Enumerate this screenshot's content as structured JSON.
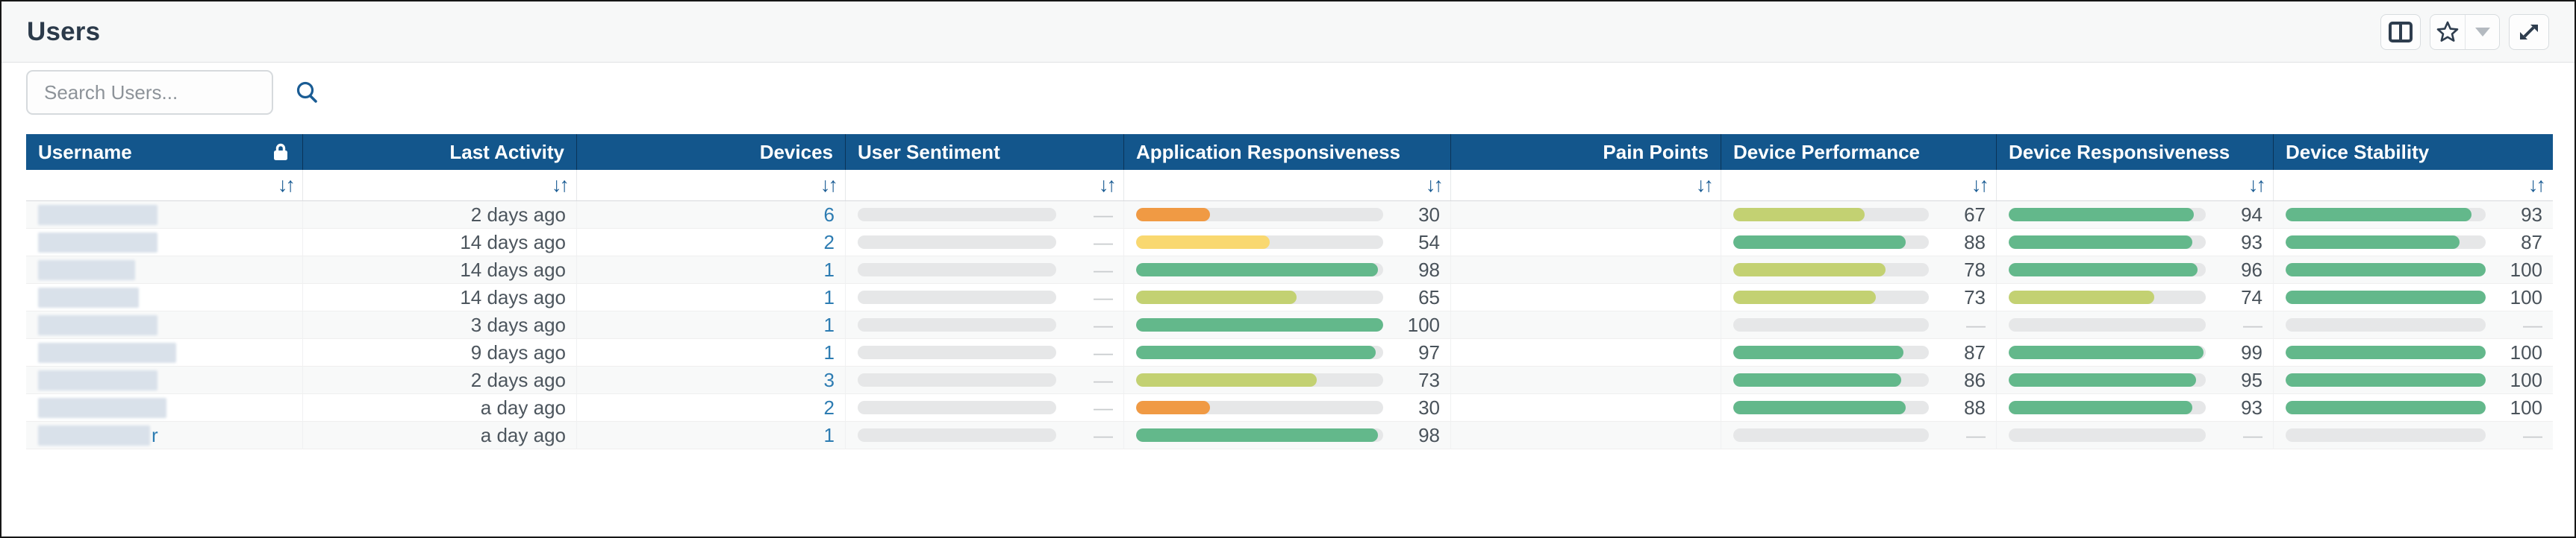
{
  "window": {
    "title": "Users"
  },
  "search": {
    "placeholder": "Search Users..."
  },
  "toolbar": {
    "buttons": [
      {
        "name": "columns",
        "icon": "columns-icon"
      },
      {
        "name": "favorite",
        "icon": "star-icon"
      },
      {
        "name": "favorite-menu",
        "icon": "caret-down-icon"
      },
      {
        "name": "expand",
        "icon": "expand-icon"
      }
    ]
  },
  "colors": {
    "header_bg": "#13568c",
    "accent_blue": "#1a5c94",
    "link": "#2d7cb2",
    "meter_track": "#e6e7e8",
    "meter_green": "#63b88b",
    "meter_lime": "#c3d172",
    "meter_yellow": "#f9d870",
    "meter_orange": "#f09a44"
  },
  "meter_thresholds": {
    "green": 80,
    "lime": 60,
    "yellow": 40
  },
  "table": {
    "empty_value": "—",
    "columns": [
      {
        "key": "username",
        "label": "Username",
        "align": "left",
        "type": "username",
        "locked": true,
        "sortable": true
      },
      {
        "key": "last_activity",
        "label": "Last Activity",
        "align": "right",
        "type": "text",
        "sortable": true
      },
      {
        "key": "devices",
        "label": "Devices",
        "align": "right",
        "type": "link",
        "sortable": true
      },
      {
        "key": "user_sentiment",
        "label": "User Sentiment",
        "align": "left",
        "type": "meter",
        "sortable": true
      },
      {
        "key": "app_responsiveness",
        "label": "Application Responsiveness",
        "align": "left",
        "type": "meter",
        "sortable": true
      },
      {
        "key": "pain_points",
        "label": "Pain Points",
        "align": "right",
        "type": "empty",
        "sortable": true
      },
      {
        "key": "device_performance",
        "label": "Device Performance",
        "align": "left",
        "type": "meter",
        "sortable": true
      },
      {
        "key": "device_responsiveness",
        "label": "Device Responsiveness",
        "align": "left",
        "type": "meter",
        "sortable": true
      },
      {
        "key": "device_stability",
        "label": "Device Stability",
        "align": "left",
        "type": "meter",
        "sortable": true
      }
    ],
    "rows": [
      {
        "username": "",
        "username_redacted": true,
        "redact_width": 160,
        "last_activity": "2 days ago",
        "devices": "6",
        "user_sentiment": null,
        "app_responsiveness": 30,
        "pain_points": null,
        "device_performance": 67,
        "device_responsiveness": 94,
        "device_stability": 93
      },
      {
        "username": "",
        "username_redacted": true,
        "redact_width": 160,
        "last_activity": "14 days ago",
        "devices": "2",
        "user_sentiment": null,
        "app_responsiveness": 54,
        "pain_points": null,
        "device_performance": 88,
        "device_responsiveness": 93,
        "device_stability": 87
      },
      {
        "username": "",
        "username_redacted": true,
        "redact_width": 130,
        "last_activity": "14 days ago",
        "devices": "1",
        "user_sentiment": null,
        "app_responsiveness": 98,
        "pain_points": null,
        "device_performance": 78,
        "device_responsiveness": 96,
        "device_stability": 100
      },
      {
        "username": "",
        "username_redacted": true,
        "redact_width": 135,
        "last_activity": "14 days ago",
        "devices": "1",
        "user_sentiment": null,
        "app_responsiveness": 65,
        "pain_points": null,
        "device_performance": 73,
        "device_responsiveness": 74,
        "device_stability": 100
      },
      {
        "username": "",
        "username_redacted": true,
        "redact_width": 160,
        "last_activity": "3 days ago",
        "devices": "1",
        "user_sentiment": null,
        "app_responsiveness": 100,
        "pain_points": null,
        "device_performance": null,
        "device_responsiveness": null,
        "device_stability": null
      },
      {
        "username": "",
        "username_redacted": true,
        "redact_width": 185,
        "last_activity": "9 days ago",
        "devices": "1",
        "user_sentiment": null,
        "app_responsiveness": 97,
        "pain_points": null,
        "device_performance": 87,
        "device_responsiveness": 99,
        "device_stability": 100
      },
      {
        "username": "",
        "username_redacted": true,
        "redact_width": 160,
        "last_activity": "2 days ago",
        "devices": "3",
        "user_sentiment": null,
        "app_responsiveness": 73,
        "pain_points": null,
        "device_performance": 86,
        "device_responsiveness": 95,
        "device_stability": 100
      },
      {
        "username": "",
        "username_redacted": true,
        "redact_width": 172,
        "last_activity": "a day ago",
        "devices": "2",
        "user_sentiment": null,
        "app_responsiveness": 30,
        "pain_points": null,
        "device_performance": 88,
        "device_responsiveness": 93,
        "device_stability": 100
      },
      {
        "username": "r",
        "username_redacted": true,
        "redact_width": 150,
        "last_activity": "a day ago",
        "devices": "1",
        "user_sentiment": null,
        "app_responsiveness": 98,
        "pain_points": null,
        "device_performance": null,
        "device_responsiveness": null,
        "device_stability": null
      }
    ]
  }
}
